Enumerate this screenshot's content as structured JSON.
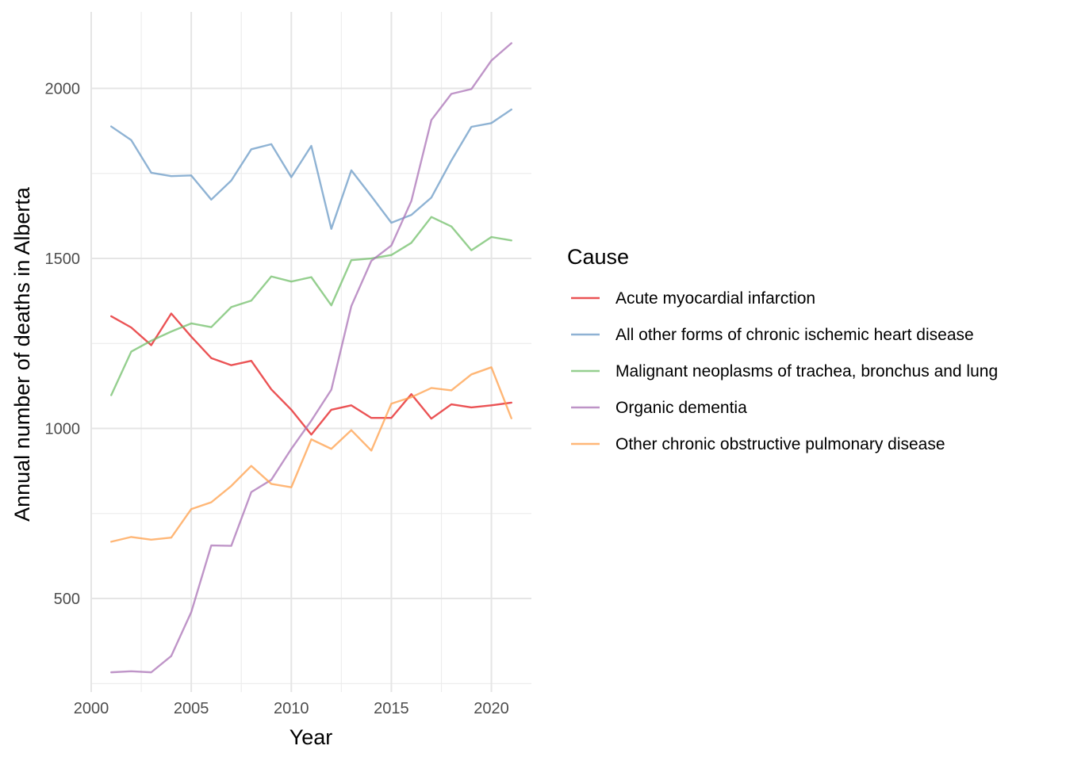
{
  "chart_data": {
    "type": "line",
    "xlabel": "Year",
    "ylabel": "Annual number of deaths in Alberta",
    "xlim": [
      2000,
      2022
    ],
    "ylim": [
      225,
      2225
    ],
    "x_ticks": [
      2000,
      2005,
      2010,
      2015,
      2020
    ],
    "y_ticks": [
      500,
      1000,
      1500,
      2000
    ],
    "x_minor": [
      2002.5,
      2007.5,
      2012.5,
      2017.5
    ],
    "y_minor": [
      250,
      750,
      1250,
      1750
    ],
    "grid": true,
    "legend": {
      "title": "Cause",
      "position": "right"
    },
    "x": [
      2001,
      2002,
      2003,
      2004,
      2005,
      2006,
      2007,
      2008,
      2009,
      2010,
      2011,
      2012,
      2013,
      2014,
      2015,
      2016,
      2017,
      2018,
      2019,
      2020,
      2021
    ],
    "series": [
      {
        "name": "Acute myocardial infarction",
        "color": "#e41a1c",
        "values": [
          1330,
          1297,
          1245,
          1338,
          1270,
          1207,
          1186,
          1199,
          1115,
          1055,
          982,
          1055,
          1068,
          1031,
          1031,
          1101,
          1029,
          1071,
          1062,
          1068,
          1076
        ]
      },
      {
        "name": "All other forms of chronic ischemic heart disease",
        "color": "#6a99c6",
        "values": [
          1888,
          1848,
          1752,
          1742,
          1744,
          1673,
          1729,
          1821,
          1836,
          1739,
          1831,
          1587,
          1759,
          1683,
          1605,
          1628,
          1679,
          1788,
          1887,
          1898,
          1938
        ]
      },
      {
        "name": "Malignant neoplasms of trachea, bronchus and lung",
        "color": "#72bf6a",
        "values": [
          1098,
          1226,
          1258,
          1285,
          1309,
          1298,
          1357,
          1376,
          1447,
          1432,
          1445,
          1362,
          1495,
          1500,
          1510,
          1546,
          1622,
          1594,
          1524,
          1563,
          1553
        ]
      },
      {
        "name": "Organic dementia",
        "color": "#a971b5",
        "values": [
          283,
          286,
          283,
          331,
          460,
          656,
          655,
          813,
          849,
          940,
          1023,
          1114,
          1360,
          1493,
          1538,
          1669,
          1907,
          1984,
          1998,
          2082,
          2133
        ]
      },
      {
        "name": "Other chronic obstructive pulmonary disease",
        "color": "#ff9f4a",
        "values": [
          667,
          681,
          673,
          679,
          763,
          783,
          831,
          890,
          837,
          827,
          968,
          940,
          995,
          935,
          1073,
          1092,
          1119,
          1112,
          1159,
          1180,
          1030
        ]
      }
    ]
  }
}
